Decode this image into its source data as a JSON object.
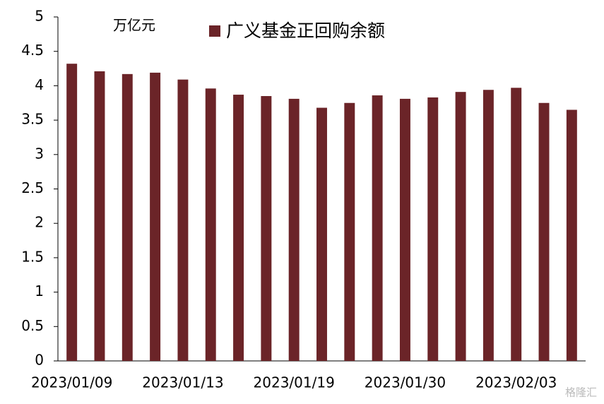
{
  "chart_data": {
    "type": "bar",
    "unit_label": "万亿元",
    "categories": [
      "2023/01/09",
      null,
      null,
      null,
      "2023/01/13",
      null,
      null,
      null,
      "2023/01/19",
      null,
      null,
      null,
      "2023/01/30",
      null,
      null,
      null,
      "2023/02/03",
      null,
      null
    ],
    "series": [
      {
        "name": "广义基金正回购余额",
        "color": "#6b2428",
        "values": [
          4.32,
          4.21,
          4.17,
          4.19,
          4.09,
          3.96,
          3.87,
          3.85,
          3.81,
          3.68,
          3.75,
          3.86,
          3.81,
          3.83,
          3.91,
          3.94,
          3.97,
          3.75,
          3.65
        ]
      }
    ],
    "ylim": [
      0,
      5
    ],
    "yticks": [
      0,
      0.5,
      1,
      1.5,
      2,
      2.5,
      3,
      3.5,
      4,
      4.5,
      5
    ],
    "grid": false,
    "watermark": "格隆汇"
  }
}
